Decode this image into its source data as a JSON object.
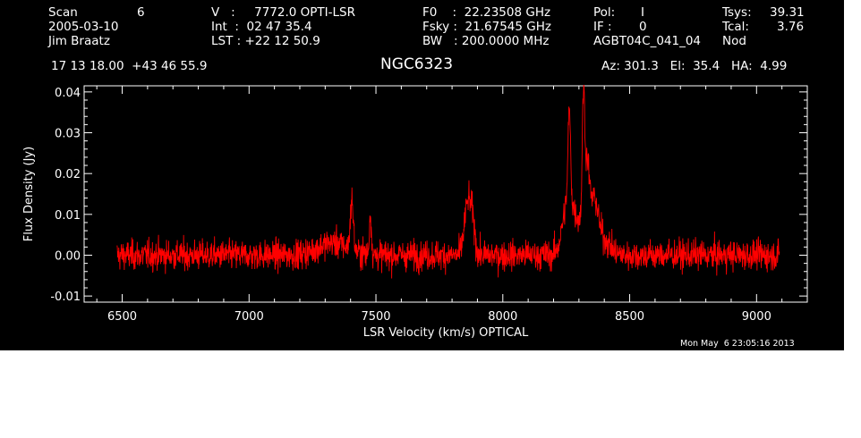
{
  "header": {
    "scan_label": "Scan",
    "scan_value": "6",
    "date": "2005-03-10",
    "observer": "Jim Braatz",
    "v_line": "V   :     7772.0 OPTI-LSR",
    "int_line": "Int  :  02 47 35.4",
    "lst_line": "LST : +22 12 50.9",
    "f0_line": "F0    :  22.23508 GHz",
    "fsky_line": "Fsky :  21.67545 GHz",
    "bw_line": "BW   : 200.0000 MHz",
    "pol_label": "Pol:",
    "pol_value": "I",
    "if_label": "IF :",
    "if_value": "0",
    "project": "AGBT04C_041_04",
    "tsys_label": "Tsys:",
    "tsys_value": "39.31",
    "tcal_label": "Tcal:",
    "tcal_value": "3.76",
    "mode": "Nod",
    "coords": "17 13 18.00  +43 46 55.9",
    "source": "NGC6323",
    "az_el_ha": "Az: 301.3   El:  35.4   HA:  4.99",
    "timestamp": "Mon May  6 23:05:16 2013"
  },
  "colors": {
    "background": "#000000",
    "axes": "#ffffff",
    "trace": "#ff0000"
  },
  "chart_data": {
    "type": "line",
    "xlabel": "LSR Velocity (km/s) OPTICAL",
    "ylabel": "Flux Density (Jy)",
    "xlim": [
      6350,
      9200
    ],
    "ylim": [
      -0.0115,
      0.0415
    ],
    "xticks": [
      6500,
      7000,
      7500,
      8000,
      8500,
      9000
    ],
    "yticks": [
      -0.01,
      0.0,
      0.01,
      0.02,
      0.03,
      0.04
    ],
    "ytick_labels": [
      "-0.01",
      "0.00",
      "0.01",
      "0.02",
      "0.03",
      "0.04"
    ],
    "grid": false,
    "series": [
      {
        "x_range": [
          6480,
          9090
        ],
        "noise_rms": 0.0018,
        "baseline": 0.0,
        "features": [
          {
            "x": 7330,
            "peak": 0.003,
            "width": 60
          },
          {
            "x": 7405,
            "peak": 0.012,
            "width": 6
          },
          {
            "x": 7478,
            "peak": 0.01,
            "width": 4
          },
          {
            "x": 7860,
            "peak": 0.012,
            "width": 12
          },
          {
            "x": 7880,
            "peak": 0.008,
            "width": 10
          },
          {
            "x": 8255,
            "peak": 0.01,
            "width": 20
          },
          {
            "x": 8262,
            "peak": 0.022,
            "width": 5
          },
          {
            "x": 8300,
            "peak": 0.008,
            "width": 35
          },
          {
            "x": 8318,
            "peak": 0.031,
            "width": 5
          },
          {
            "x": 8333,
            "peak": 0.016,
            "width": 8
          },
          {
            "x": 8360,
            "peak": 0.01,
            "width": 15
          },
          {
            "x": 8390,
            "peak": 0.004,
            "width": 30
          }
        ]
      }
    ]
  }
}
